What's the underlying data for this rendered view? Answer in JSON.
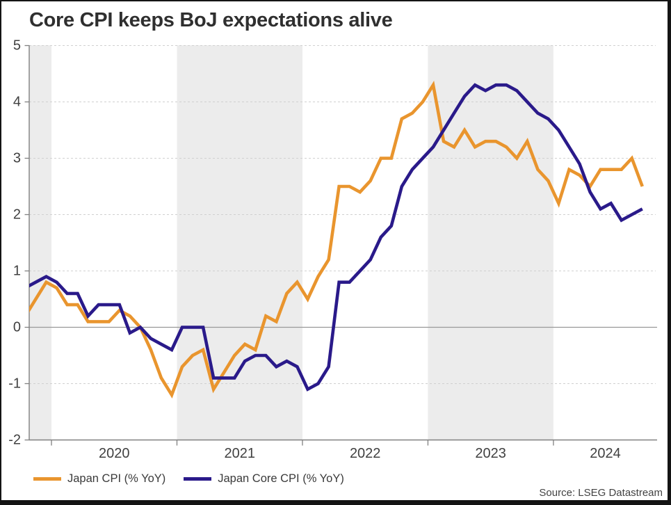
{
  "title": "Core CPI keeps BoJ expectations alive",
  "source_note": "Source: LSEG Datastream",
  "legend": {
    "items": [
      {
        "label": "Japan CPI (% YoY)",
        "color": "#e9952e"
      },
      {
        "label": "Japan Core CPI (% YoY)",
        "color": "#2a1a8a"
      }
    ]
  },
  "colors": {
    "cpi_line": "#e9952e",
    "core_cpi_line": "#2a1a8a",
    "band_fill": "#ececec",
    "grid_dashed": "#d0d0d0",
    "zero_line": "#979797",
    "axis": "#808080",
    "tick_text": "#404040",
    "title_text": "#2f2f2f"
  },
  "chart_data": {
    "type": "line",
    "title": "Core CPI keeps BoJ expectations alive",
    "x_frequency": "monthly",
    "x_start_month": "2019-10",
    "x_end_month": "2024-09",
    "xlabel": "",
    "ylabel": "",
    "ylim": [
      -2,
      5
    ],
    "yticks": [
      5,
      4,
      3,
      2,
      1,
      0,
      -1,
      -2
    ],
    "grid": "horizontal-dashed, solid zero line",
    "legend_position": "bottom-left",
    "year_tick_month_indices": [
      3,
      15,
      27,
      39,
      51
    ],
    "year_labels": [
      "2020",
      "2021",
      "2022",
      "2023",
      "2024"
    ],
    "shaded_band_month_ranges": [
      [
        0,
        3
      ],
      [
        15,
        27
      ],
      [
        39,
        51
      ]
    ],
    "series": [
      {
        "name": "Japan CPI (% YoY)",
        "color": "#e9952e",
        "values": [
          0.2,
          0.5,
          0.8,
          0.7,
          0.4,
          0.4,
          0.1,
          0.1,
          0.1,
          0.3,
          0.2,
          0.0,
          -0.4,
          -0.9,
          -1.2,
          -0.7,
          -0.5,
          -0.4,
          -1.1,
          -0.8,
          -0.5,
          -0.3,
          -0.4,
          0.2,
          0.1,
          0.6,
          0.8,
          0.5,
          0.9,
          1.2,
          2.5,
          2.5,
          2.4,
          2.6,
          3.0,
          3.0,
          3.7,
          3.8,
          4.0,
          4.3,
          3.3,
          3.2,
          3.5,
          3.2,
          3.3,
          3.3,
          3.2,
          3.0,
          3.3,
          2.8,
          2.6,
          2.2,
          2.8,
          2.7,
          2.5,
          2.8,
          2.8,
          2.8,
          3.0,
          2.5
        ]
      },
      {
        "name": "Japan Core CPI (% YoY)",
        "color": "#2a1a8a",
        "values": [
          0.7,
          0.8,
          0.9,
          0.8,
          0.6,
          0.6,
          0.2,
          0.4,
          0.4,
          0.4,
          -0.1,
          0.0,
          -0.2,
          -0.3,
          -0.4,
          0.0,
          0.0,
          0.0,
          -0.9,
          -0.9,
          -0.9,
          -0.6,
          -0.5,
          -0.5,
          -0.7,
          -0.6,
          -0.7,
          -1.1,
          -1.0,
          -0.7,
          0.8,
          0.8,
          1.0,
          1.2,
          1.6,
          1.8,
          2.5,
          2.8,
          3.0,
          3.2,
          3.5,
          3.8,
          4.1,
          4.3,
          4.2,
          4.3,
          4.3,
          4.2,
          4.0,
          3.8,
          3.7,
          3.5,
          3.2,
          2.9,
          2.4,
          2.1,
          2.2,
          1.9,
          2.0,
          2.1
        ]
      }
    ]
  }
}
